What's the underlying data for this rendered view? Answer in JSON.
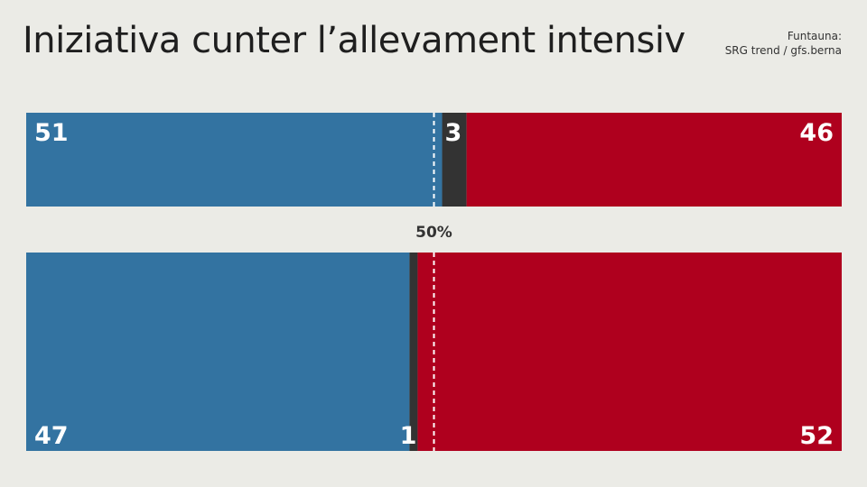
{
  "title": "Iniziativa cunter l’allevament intensiv",
  "source": {
    "label": "Funtauna:",
    "name": "SRG trend / gfs.berna"
  },
  "colors": {
    "yes": "#3373a1",
    "undecided": "#333333",
    "no": "#af001e",
    "label": "#ffffff",
    "midline": "#ffffff",
    "midlabel": "#333333"
  },
  "chart_data": {
    "type": "bar",
    "orientation": "horizontal",
    "stacked": true,
    "xlim": [
      0,
      100
    ],
    "reference_line": {
      "value": 50,
      "label": "50%"
    },
    "categories": [
      "",
      ""
    ],
    "series": [
      {
        "key": "yes",
        "values": [
          51,
          47
        ]
      },
      {
        "key": "undecided",
        "values": [
          3,
          1
        ]
      },
      {
        "key": "no",
        "values": [
          46,
          52
        ]
      }
    ],
    "data_labels": [
      {
        "yes": "51",
        "undecided": "3",
        "no": "46"
      },
      {
        "yes": "47",
        "undecided": "1",
        "no": "52"
      }
    ]
  }
}
